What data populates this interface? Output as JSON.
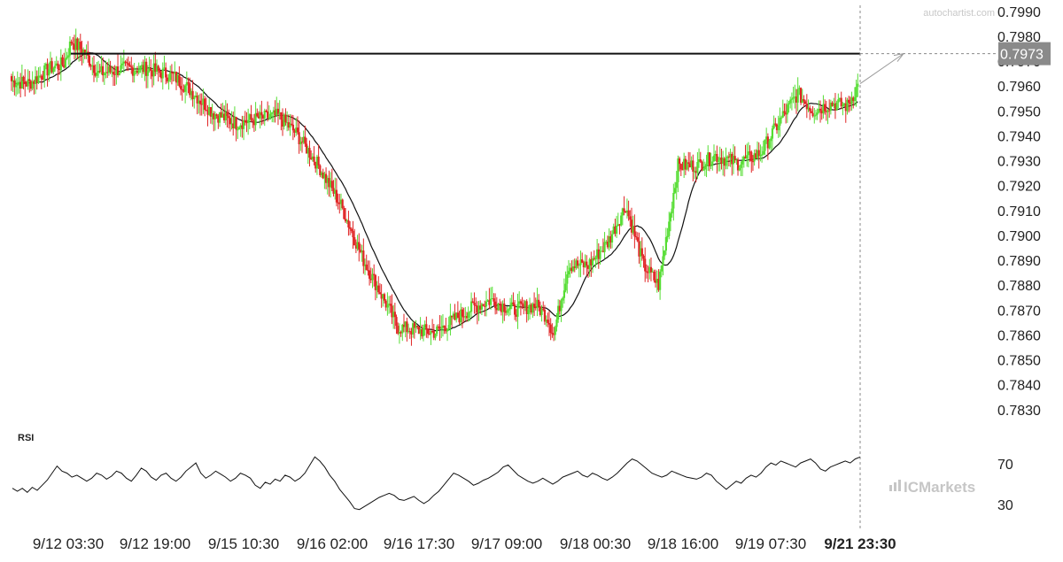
{
  "watermark": "autochartist.com",
  "brand": "ICMarkets",
  "rsi_label": "RSI",
  "colors": {
    "up": "#55dd33",
    "down": "#e02525",
    "ma": "#111111",
    "resistance": "#111111",
    "rsi": "#111111",
    "tag": "#8a8a8a"
  },
  "chart_data": {
    "type": "candlestick",
    "price_axis": {
      "ylim": [
        0.7826,
        0.7991
      ],
      "ticks": [
        "0.7990",
        "0.7980",
        "0.7970",
        "0.7960",
        "0.7950",
        "0.7940",
        "0.7930",
        "0.7920",
        "0.7910",
        "0.7900",
        "0.7890",
        "0.7880",
        "0.7870",
        "0.7860",
        "0.7850",
        "0.7840",
        "0.7830"
      ]
    },
    "x_tick_labels": [
      "9/12 03:30",
      "9/12 19:00",
      "9/15 10:30",
      "9/16 02:00",
      "9/16 17:30",
      "9/17 09:00",
      "9/18 00:30",
      "9/18 16:00",
      "9/19 07:30",
      "9/21 23:30"
    ],
    "resistance_level": 0.7973,
    "resistance_label": "0.7973",
    "close_profile": [
      [
        0,
        0.7962
      ],
      [
        12,
        0.7961
      ],
      [
        25,
        0.7967
      ],
      [
        35,
        0.7969
      ],
      [
        40,
        0.7978
      ],
      [
        48,
        0.7974
      ],
      [
        58,
        0.7965
      ],
      [
        75,
        0.7967
      ],
      [
        90,
        0.7967
      ],
      [
        108,
        0.7964
      ],
      [
        120,
        0.7958
      ],
      [
        135,
        0.7949
      ],
      [
        150,
        0.7945
      ],
      [
        165,
        0.7947
      ],
      [
        178,
        0.7948
      ],
      [
        190,
        0.7941
      ],
      [
        205,
        0.7928
      ],
      [
        220,
        0.7912
      ],
      [
        235,
        0.789
      ],
      [
        248,
        0.7875
      ],
      [
        258,
        0.7863
      ],
      [
        270,
        0.7862
      ],
      [
        283,
        0.7861
      ],
      [
        295,
        0.7866
      ],
      [
        308,
        0.7871
      ],
      [
        320,
        0.7874
      ],
      [
        335,
        0.787
      ],
      [
        350,
        0.7872
      ],
      [
        358,
        0.7867
      ],
      [
        362,
        0.786
      ],
      [
        366,
        0.7872
      ],
      [
        372,
        0.7888
      ],
      [
        385,
        0.7888
      ],
      [
        398,
        0.7897
      ],
      [
        410,
        0.7912
      ],
      [
        422,
        0.7888
      ],
      [
        432,
        0.788
      ],
      [
        445,
        0.7928
      ],
      [
        458,
        0.7928
      ],
      [
        470,
        0.7932
      ],
      [
        485,
        0.7929
      ],
      [
        500,
        0.7933
      ],
      [
        515,
        0.7948
      ],
      [
        525,
        0.7957
      ],
      [
        535,
        0.795
      ],
      [
        548,
        0.7953
      ],
      [
        558,
        0.7952
      ],
      [
        565,
        0.796
      ]
    ],
    "moving_average_period": 20,
    "rsi": {
      "levels": [
        "70",
        "30"
      ],
      "ylim": [
        15,
        85
      ],
      "values": [
        45,
        42,
        45,
        41,
        46,
        43,
        48,
        53,
        60,
        67,
        62,
        60,
        56,
        58,
        55,
        52,
        55,
        60,
        58,
        54,
        57,
        62,
        60,
        55,
        52,
        58,
        65,
        62,
        56,
        53,
        58,
        60,
        55,
        52,
        56,
        62,
        66,
        70,
        60,
        55,
        58,
        62,
        59,
        56,
        52,
        55,
        60,
        58,
        55,
        48,
        45,
        51,
        49,
        54,
        52,
        58,
        56,
        52,
        55,
        60,
        68,
        76,
        72,
        66,
        58,
        52,
        44,
        38,
        32,
        25,
        24,
        27,
        30,
        33,
        36,
        38,
        40,
        38,
        34,
        33,
        35,
        37,
        33,
        30,
        33,
        38,
        42,
        48,
        54,
        60,
        58,
        55,
        52,
        48,
        50,
        53,
        55,
        58,
        61,
        66,
        68,
        63,
        58,
        55,
        52,
        50,
        52,
        55,
        52,
        49,
        52,
        56,
        58,
        60,
        62,
        58,
        56,
        60,
        58,
        55,
        53,
        56,
        60,
        65,
        70,
        74,
        72,
        68,
        64,
        60,
        58,
        56,
        58,
        62,
        60,
        58,
        56,
        55,
        54,
        56,
        60,
        58,
        52,
        48,
        44,
        48,
        52,
        50,
        55,
        58,
        56,
        60,
        66,
        70,
        68,
        72,
        70,
        68,
        66,
        70,
        72,
        74,
        70,
        64,
        62,
        66,
        68,
        70,
        72,
        70,
        74,
        76
      ]
    }
  }
}
